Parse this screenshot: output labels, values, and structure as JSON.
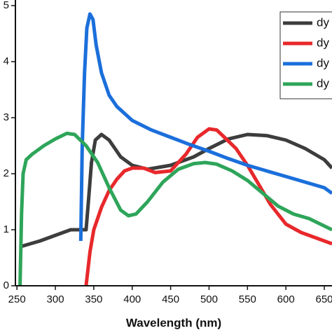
{
  "chart_data": {
    "type": "line",
    "xlabel": "Wavelength (nm)",
    "xlim": [
      248,
      660
    ],
    "xticks": [
      250,
      300,
      350,
      400,
      450,
      500,
      550,
      600,
      650
    ],
    "ylim": [
      0,
      5.1
    ],
    "yticks": [
      0,
      1,
      2,
      3,
      4,
      5
    ],
    "series": [
      {
        "name": "dy",
        "color": "#3d3d3d",
        "x": [
          255,
          280,
          300,
          320,
          335,
          340,
          343,
          347,
          352,
          360,
          370,
          385,
          400,
          420,
          450,
          480,
          500,
          525,
          550,
          575,
          600,
          625,
          650,
          660
        ],
        "values": [
          0.7,
          0.8,
          0.9,
          1.0,
          1.0,
          1.0,
          1.5,
          2.2,
          2.6,
          2.7,
          2.6,
          2.3,
          2.15,
          2.08,
          2.15,
          2.3,
          2.45,
          2.62,
          2.7,
          2.68,
          2.6,
          2.45,
          2.25,
          2.1
        ]
      },
      {
        "name": "dy",
        "color": "#e8282b",
        "x": [
          340,
          345,
          350,
          360,
          370,
          380,
          390,
          400,
          415,
          430,
          450,
          470,
          485,
          500,
          510,
          520,
          535,
          550,
          565,
          580,
          600,
          620,
          640,
          660
        ],
        "values": [
          0.0,
          0.6,
          1.0,
          1.4,
          1.7,
          1.9,
          2.05,
          2.1,
          2.1,
          2.02,
          2.05,
          2.35,
          2.65,
          2.8,
          2.78,
          2.65,
          2.45,
          2.15,
          1.8,
          1.45,
          1.1,
          0.95,
          0.85,
          0.75
        ]
      },
      {
        "name": "dy",
        "color": "#1b6fdb",
        "x": [
          333,
          335,
          338,
          341,
          345,
          349,
          353,
          360,
          370,
          380,
          400,
          425,
          450,
          475,
          500,
          525,
          550,
          575,
          600,
          625,
          650,
          660
        ],
        "values": [
          0.8,
          2.5,
          3.8,
          4.6,
          4.85,
          4.75,
          4.3,
          3.8,
          3.4,
          3.2,
          2.95,
          2.78,
          2.65,
          2.52,
          2.4,
          2.27,
          2.15,
          2.05,
          1.95,
          1.85,
          1.75,
          1.65
        ]
      },
      {
        "name": "dy",
        "color": "#2ea55a",
        "x": [
          254,
          256,
          258,
          262,
          270,
          285,
          300,
          315,
          325,
          340,
          355,
          370,
          385,
          395,
          405,
          420,
          440,
          460,
          480,
          495,
          510,
          530,
          550,
          570,
          590,
          610,
          630,
          660
        ],
        "values": [
          0.0,
          1.3,
          2.0,
          2.25,
          2.35,
          2.5,
          2.62,
          2.72,
          2.7,
          2.5,
          2.2,
          1.75,
          1.35,
          1.25,
          1.28,
          1.5,
          1.85,
          2.08,
          2.18,
          2.2,
          2.17,
          2.05,
          1.88,
          1.65,
          1.42,
          1.28,
          1.2,
          1.0
        ]
      }
    ]
  }
}
